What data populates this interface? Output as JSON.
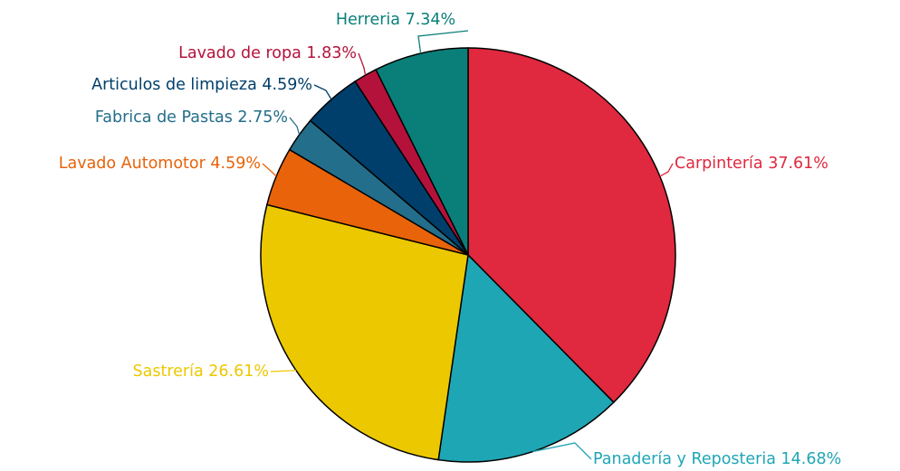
{
  "chart_data": {
    "type": "pie",
    "categories": [
      "Carpintería",
      "Panadería y Reposteria",
      "Sastrería",
      "Lavado Automotor",
      "Fabrica de Pastas",
      "Articulos de limpieza",
      "Lavado de ropa",
      "Herreria"
    ],
    "values": [
      37.61,
      14.68,
      26.61,
      4.59,
      2.75,
      4.59,
      1.83,
      7.34
    ],
    "value_labels": [
      "37.61%",
      "14.68%",
      "26.61%",
      "4.59%",
      "2.75%",
      "4.59%",
      "1.83%",
      "7.34%"
    ],
    "colors": [
      "#e0283f",
      "#1fa6b5",
      "#ecc800",
      "#e8630a",
      "#236e8a",
      "#003f6b",
      "#b5123b",
      "#0a7f7a"
    ]
  }
}
